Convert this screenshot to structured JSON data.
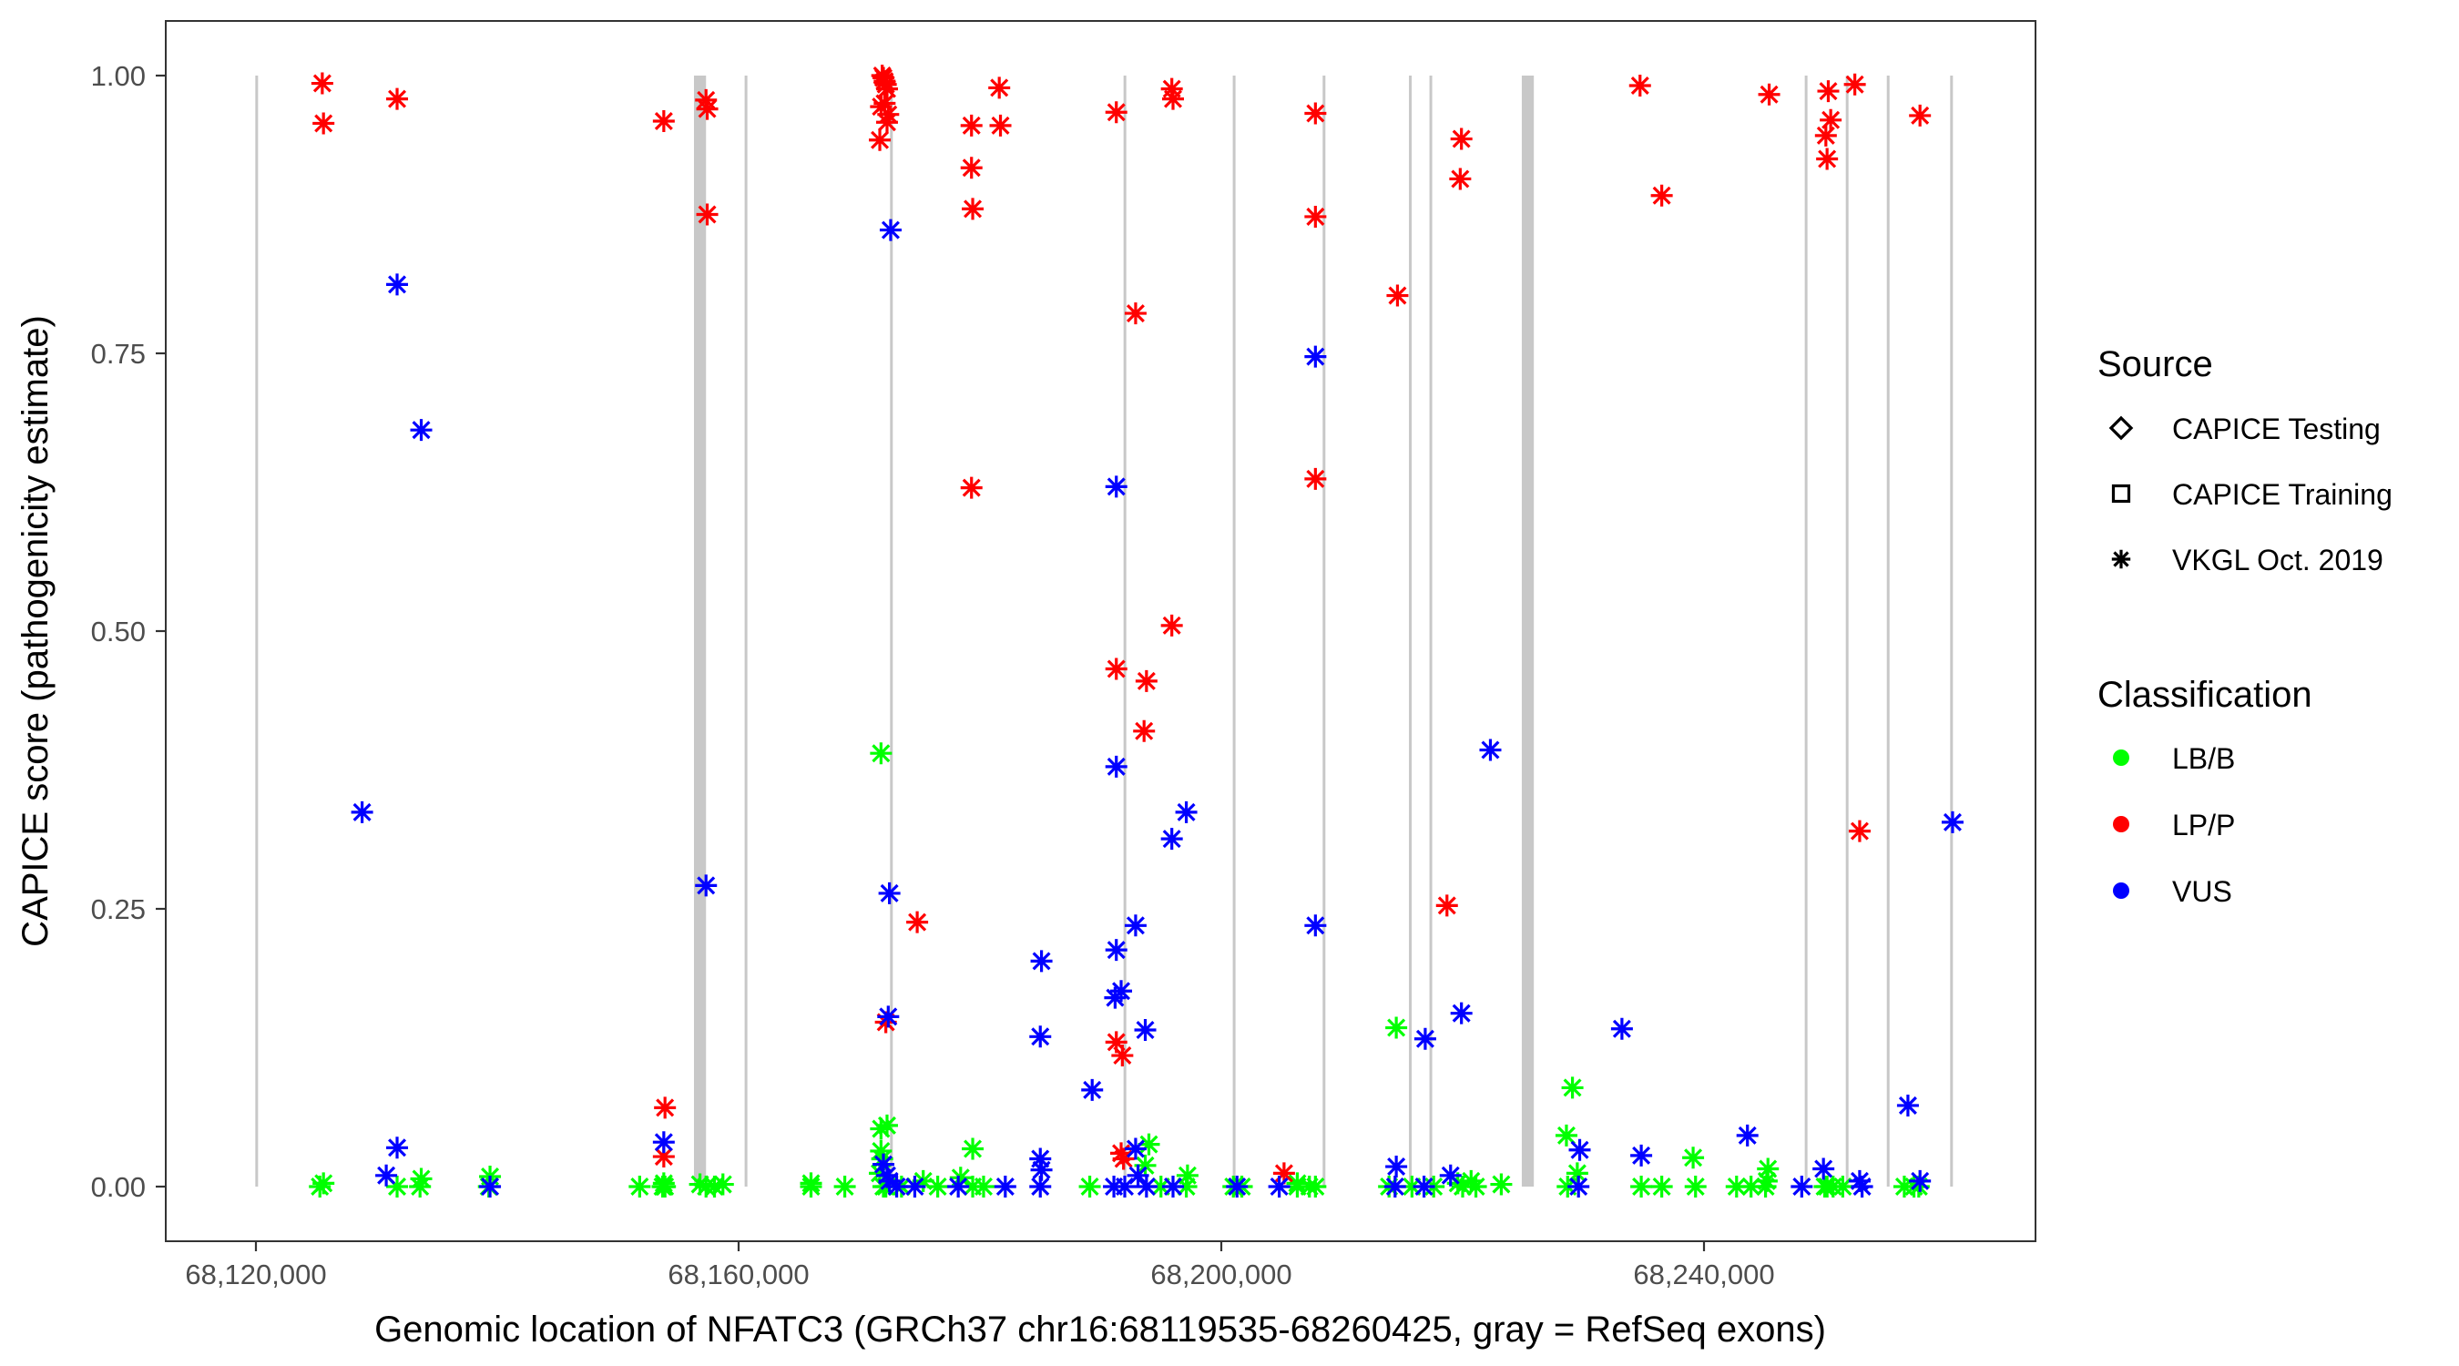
{
  "chart_data": {
    "type": "scatter",
    "title": "",
    "xlabel": "Genomic location of NFATC3 (GRCh37 chr16:68119535-68260425, gray = RefSeq exons)",
    "ylabel": "CAPICE score (pathogenicity estimate)",
    "xlim": [
      68113000,
      68270000
    ],
    "ylim": [
      -0.045,
      1.045
    ],
    "x_ticks": [
      {
        "value": 68120000,
        "label": "68,120,000"
      },
      {
        "value": 68160000,
        "label": "68,160,000"
      },
      {
        "value": 68200000,
        "label": "68,200,000"
      },
      {
        "value": 68240000,
        "label": "68,240,000"
      }
    ],
    "y_ticks": [
      {
        "value": 0.0,
        "label": "0.00"
      },
      {
        "value": 0.25,
        "label": "0.25"
      },
      {
        "value": 0.5,
        "label": "0.50"
      },
      {
        "value": 0.75,
        "label": "0.75"
      },
      {
        "value": 1.0,
        "label": "1.00"
      }
    ],
    "grid": false,
    "exons": [
      [
        68119950,
        68120050
      ],
      [
        68156300,
        68157300
      ],
      [
        68160500,
        68160650
      ],
      [
        68172550,
        68172700
      ],
      [
        68191900,
        68192050
      ],
      [
        68200950,
        68201050
      ],
      [
        68208400,
        68208500
      ],
      [
        68215550,
        68215650
      ],
      [
        68217250,
        68217350
      ],
      [
        68224900,
        68225900
      ],
      [
        68248350,
        68248450
      ],
      [
        68251750,
        68251850
      ],
      [
        68255150,
        68255250
      ],
      [
        68260400,
        68260500
      ]
    ],
    "legend": {
      "position": "right",
      "source": {
        "title": "Source",
        "items": [
          {
            "key": "testing",
            "label": "CAPICE Testing",
            "shape": "diamond"
          },
          {
            "key": "training",
            "label": "CAPICE Training",
            "shape": "square"
          },
          {
            "key": "vkgl",
            "label": "VKGL Oct. 2019",
            "shape": "asterisk"
          }
        ]
      },
      "classification": {
        "title": "Classification",
        "items": [
          {
            "key": "LB/B",
            "label": "LB/B",
            "color": "#00ff00"
          },
          {
            "key": "LP/P",
            "label": "LP/P",
            "color": "#ff0000"
          },
          {
            "key": "VUS",
            "label": "VUS",
            "color": "#0000ff"
          }
        ]
      }
    },
    "series": [
      {
        "name": "CAPICE Training / LP/P",
        "source": "training",
        "class": "LP/P",
        "points": [
          [
            68125500,
            0.993
          ],
          [
            68125600,
            0.957
          ],
          [
            68131700,
            0.979
          ],
          [
            68153800,
            0.959
          ],
          [
            68157300,
            0.978
          ],
          [
            68157400,
            0.97
          ],
          [
            68171900,
            1.0
          ],
          [
            68172000,
            0.998
          ],
          [
            68172100,
            0.995
          ],
          [
            68172200,
            0.992
          ],
          [
            68172300,
            0.988
          ],
          [
            68172100,
            0.975
          ],
          [
            68172400,
            0.965
          ],
          [
            68172300,
            0.958
          ],
          [
            68171700,
            0.942
          ],
          [
            68179300,
            0.955
          ],
          [
            68179400,
            0.88
          ],
          [
            68181600,
            0.989
          ],
          [
            68181700,
            0.955
          ],
          [
            68191300,
            0.967
          ],
          [
            68195900,
            0.988
          ],
          [
            68207800,
            0.966
          ],
          [
            68219900,
            0.943
          ],
          [
            68219800,
            0.907
          ],
          [
            68234700,
            0.991
          ],
          [
            68245400,
            0.983
          ],
          [
            68250300,
            0.986
          ],
          [
            68250500,
            0.96
          ],
          [
            68250100,
            0.946
          ],
          [
            68250200,
            0.925
          ],
          [
            68252500,
            0.992
          ],
          [
            68257900,
            0.964
          ],
          [
            68252900,
            0.32
          ],
          [
            68205200,
            0.012
          ]
        ]
      },
      {
        "name": "CAPICE Testing / LP/P",
        "source": "testing",
        "class": "LP/P",
        "points": [
          [
            68196000,
            0.979
          ],
          [
            68236500,
            0.892
          ],
          [
            68207800,
            0.637
          ],
          [
            68218700,
            0.253
          ]
        ]
      },
      {
        "name": "VKGL / LP/P",
        "source": "vkgl",
        "class": "LP/P",
        "points": [
          [
            68157400,
            0.875
          ],
          [
            68171800,
            0.972
          ],
          [
            68179300,
            0.917
          ],
          [
            68179300,
            0.629
          ],
          [
            68192900,
            0.786
          ],
          [
            68207800,
            0.873
          ],
          [
            68214600,
            0.802
          ],
          [
            68195900,
            0.505
          ],
          [
            68191300,
            0.466
          ],
          [
            68193800,
            0.455
          ],
          [
            68193600,
            0.41
          ],
          [
            68174800,
            0.238
          ],
          [
            68172200,
            0.148
          ],
          [
            68191300,
            0.13
          ],
          [
            68191800,
            0.118
          ],
          [
            68153900,
            0.071
          ],
          [
            68153800,
            0.027
          ],
          [
            68191700,
            0.03
          ],
          [
            68191900,
            0.025
          ]
        ]
      },
      {
        "name": "VKGL / VUS",
        "source": "vkgl",
        "class": "VUS",
        "points": [
          [
            68131700,
            0.812
          ],
          [
            68133700,
            0.681
          ],
          [
            68128800,
            0.337
          ],
          [
            68131700,
            0.035
          ],
          [
            68130800,
            0.01
          ],
          [
            68139400,
            0.0
          ],
          [
            68157300,
            0.271
          ],
          [
            68153800,
            0.04
          ],
          [
            68172600,
            0.861
          ],
          [
            68172500,
            0.264
          ],
          [
            68172400,
            0.153
          ],
          [
            68172000,
            0.02
          ],
          [
            68172300,
            0.01
          ],
          [
            68172500,
            0.005
          ],
          [
            68173100,
            0.0
          ],
          [
            68174600,
            0.0
          ],
          [
            68178200,
            0.0
          ],
          [
            68182100,
            0.0
          ],
          [
            68185100,
            0.203
          ],
          [
            68185000,
            0.135
          ],
          [
            68185000,
            0.025
          ],
          [
            68185100,
            0.015
          ],
          [
            68185000,
            0.0
          ],
          [
            68191300,
            0.63
          ],
          [
            68191300,
            0.378
          ],
          [
            68191300,
            0.213
          ],
          [
            68191200,
            0.17
          ],
          [
            68191700,
            0.176
          ],
          [
            68192900,
            0.235
          ],
          [
            68193700,
            0.141
          ],
          [
            68189300,
            0.087
          ],
          [
            68192900,
            0.034
          ],
          [
            68193100,
            0.01
          ],
          [
            68191100,
            0.0
          ],
          [
            68192000,
            0.0
          ],
          [
            68193800,
            0.0
          ],
          [
            68196000,
            0.0
          ],
          [
            68195900,
            0.313
          ],
          [
            68197100,
            0.337
          ],
          [
            68207800,
            0.747
          ],
          [
            68207800,
            0.235
          ],
          [
            68201300,
            0.0
          ],
          [
            68204800,
            0.0
          ],
          [
            68214500,
            0.018
          ],
          [
            68214400,
            0.0
          ],
          [
            68216900,
            0.133
          ],
          [
            68219900,
            0.156
          ],
          [
            68222300,
            0.393
          ],
          [
            68219000,
            0.01
          ],
          [
            68216800,
            0.0
          ],
          [
            68229700,
            0.033
          ],
          [
            68229600,
            0.0
          ],
          [
            68233200,
            0.142
          ],
          [
            68234800,
            0.028
          ],
          [
            68243600,
            0.046
          ],
          [
            68249900,
            0.016
          ],
          [
            68248100,
            0.0
          ],
          [
            68252900,
            0.005
          ],
          [
            68253100,
            0.0
          ],
          [
            68256900,
            0.073
          ],
          [
            68257900,
            0.005
          ],
          [
            68260600,
            0.328
          ]
        ]
      },
      {
        "name": "VKGL / LB/B",
        "source": "vkgl",
        "class": "LB/B",
        "points": [
          [
            68214500,
            0.143
          ],
          [
            68229100,
            0.089
          ],
          [
            68239100,
            0.026
          ],
          [
            68131700,
            0.0
          ],
          [
            68153800,
            0.0
          ],
          [
            68172200,
            0.0
          ],
          [
            68206300,
            0.0
          ],
          [
            68220000,
            0.0
          ],
          [
            68250200,
            0.0
          ],
          [
            68257800,
            0.0
          ]
        ]
      },
      {
        "name": "CAPICE Training / LB/B",
        "source": "training",
        "class": "LB/B",
        "points": [
          [
            68125600,
            0.003
          ],
          [
            68125300,
            0.0
          ],
          [
            68133700,
            0.007
          ],
          [
            68133600,
            0.0
          ],
          [
            68139400,
            0.009
          ],
          [
            68139300,
            0.0
          ],
          [
            68151800,
            0.0
          ],
          [
            68153800,
            0.003
          ],
          [
            68153700,
            0.0
          ],
          [
            68153900,
            0.0
          ],
          [
            68156800,
            0.002
          ],
          [
            68157300,
            0.0
          ],
          [
            68158000,
            0.0
          ],
          [
            68158700,
            0.002
          ],
          [
            68166000,
            0.003
          ],
          [
            68166000,
            0.0
          ],
          [
            68168800,
            0.0
          ],
          [
            68171800,
            0.39
          ],
          [
            68171800,
            0.052
          ],
          [
            68172300,
            0.055
          ],
          [
            68171800,
            0.032
          ],
          [
            68171900,
            0.025
          ],
          [
            68171700,
            0.012
          ],
          [
            68172000,
            0.0
          ],
          [
            68173500,
            0.0
          ],
          [
            68175300,
            0.005
          ],
          [
            68176500,
            0.0
          ],
          [
            68178400,
            0.008
          ],
          [
            68179400,
            0.034
          ],
          [
            68179400,
            0.0
          ],
          [
            68180300,
            0.0
          ],
          [
            68189100,
            0.0
          ],
          [
            68194000,
            0.038
          ],
          [
            68193700,
            0.019
          ],
          [
            68195000,
            0.0
          ],
          [
            68197200,
            0.01
          ],
          [
            68197100,
            0.0
          ],
          [
            68201000,
            0.0
          ],
          [
            68201700,
            0.0
          ],
          [
            68206300,
            0.003
          ],
          [
            68207300,
            0.0
          ],
          [
            68207800,
            0.0
          ],
          [
            68213900,
            0.0
          ],
          [
            68215800,
            0.0
          ],
          [
            68217600,
            0.0
          ],
          [
            68219600,
            0.003
          ],
          [
            68220700,
            0.005
          ],
          [
            68221100,
            0.0
          ],
          [
            68223200,
            0.002
          ],
          [
            68228600,
            0.046
          ],
          [
            68229500,
            0.012
          ],
          [
            68228700,
            0.0
          ],
          [
            68234800,
            0.0
          ],
          [
            68236500,
            0.0
          ],
          [
            68239300,
            0.0
          ],
          [
            68242700,
            0.0
          ],
          [
            68243900,
            0.0
          ],
          [
            68245300,
            0.016
          ],
          [
            68245200,
            0.005
          ],
          [
            68245100,
            0.0
          ],
          [
            68250000,
            0.0
          ],
          [
            68250700,
            0.0
          ],
          [
            68251500,
            0.0
          ],
          [
            68256600,
            0.0
          ],
          [
            68257400,
            0.0
          ]
        ]
      }
    ]
  }
}
